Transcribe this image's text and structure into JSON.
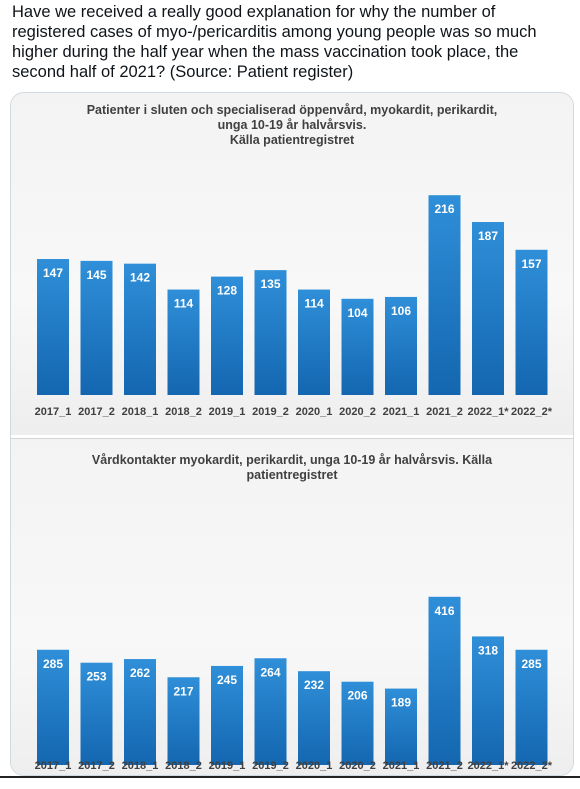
{
  "tweet": {
    "text": "Have we received a really good explanation for why the number of registered cases of myo-/pericarditis among young people was so much higher during the half year when the mass vaccination took place, the second half of 2021? (Source: Patient register)"
  },
  "colors": {
    "bar_top": "#2f8fd8",
    "bar_bottom": "#1466b0",
    "panel_bg": "#f3f3f3",
    "text": "#404040"
  },
  "chart_data": [
    {
      "type": "bar",
      "title_lines": [
        "Patienter i sluten och specialiserad öppenvård, myokardit, perikardit,",
        "unga 10-19 år halvårsvis.",
        "Källa patientregistret"
      ],
      "categories": [
        "2017_1",
        "2017_2",
        "2018_1",
        "2018_2",
        "2019_1",
        "2019_2",
        "2020_1",
        "2020_2",
        "2021_1",
        "2021_2",
        "2022_1*",
        "2022_2*"
      ],
      "values": [
        147,
        145,
        142,
        114,
        128,
        135,
        114,
        104,
        106,
        216,
        187,
        157
      ],
      "ylim": [
        0,
        240
      ],
      "grid": false,
      "legend": "none"
    },
    {
      "type": "bar",
      "title_lines": [
        "Vårdkontakter myokardit, perikardit, unga 10-19 år halvårsvis.  Källa",
        "patientregistret"
      ],
      "categories": [
        "2017_1",
        "2017_2",
        "2018_1",
        "2018_2",
        "2019_1",
        "2019_2",
        "2020_1",
        "2020_2",
        "2021_1",
        "2021_2",
        "2022_1*",
        "2022_2*"
      ],
      "values": [
        285,
        253,
        262,
        217,
        245,
        264,
        232,
        206,
        189,
        416,
        318,
        285
      ],
      "ylim": [
        0,
        460
      ],
      "grid": false,
      "legend": "none"
    }
  ]
}
